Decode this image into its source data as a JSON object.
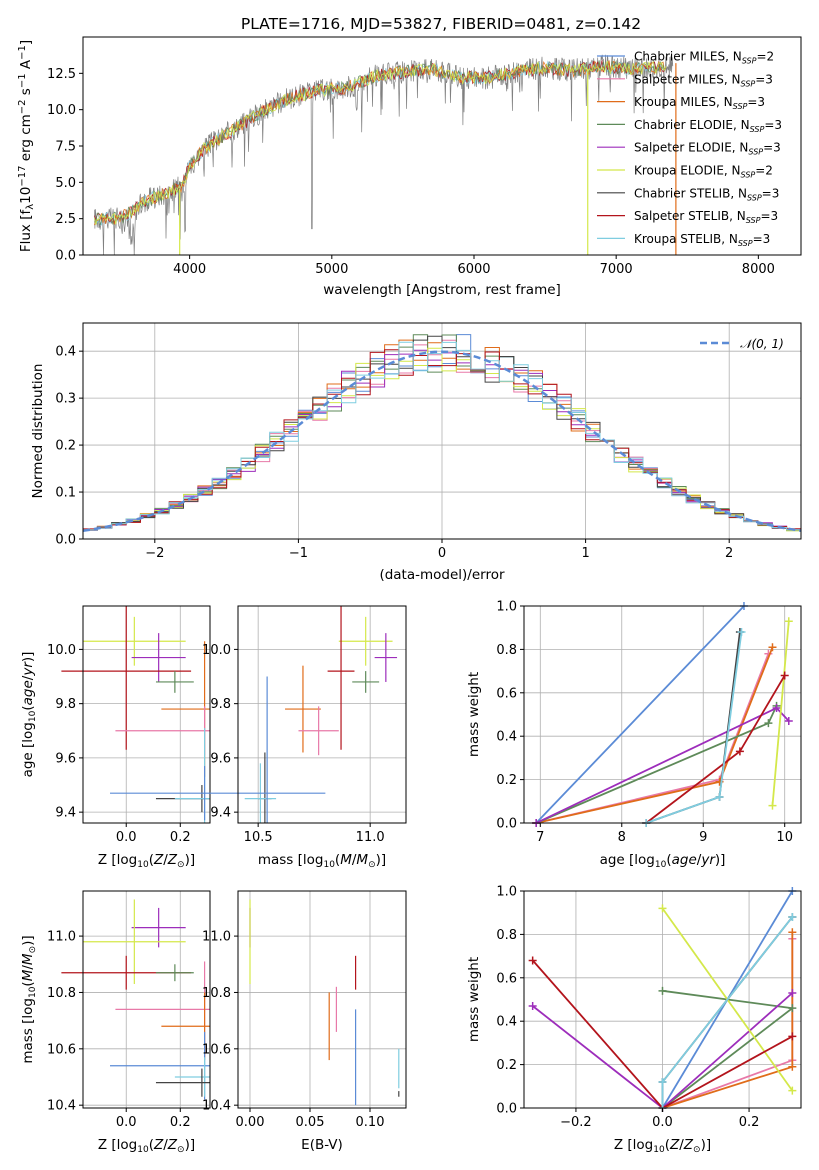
{
  "figure_title": "PLATE=1716, MJD=53827, FIBERID=0481, z=0.142",
  "colors": {
    "Chabrier MILES": "#5b8bd6",
    "Salpeter MILES": "#e879a8",
    "Kroupa MILES": "#e06c1a",
    "Chabrier ELODIE": "#5e8a59",
    "Salpeter ELODIE": "#9d2dbb",
    "Kroupa ELODIE": "#d4e84a",
    "Chabrier STELIB": "#444444",
    "Salpeter STELIB": "#b3141c",
    "Kroupa STELIB": "#7fcde0"
  },
  "chart_data": [
    {
      "id": "spectrum",
      "type": "line",
      "title": "PLATE=1716, MJD=53827, FIBERID=0481, z=0.142",
      "xlabel": "wavelength [Angstrom, rest frame]",
      "ylabel": "Flux [f_λ 10^-17 erg cm^-2 s^-1 A^-1]",
      "xlim": [
        3250,
        8300
      ],
      "ylim": [
        0,
        15
      ],
      "xticks": [
        "4000",
        "5000",
        "6000",
        "7000",
        "8000"
      ],
      "yticks": [
        "0.0",
        "2.5",
        "5.0",
        "7.5",
        "10.0",
        "12.5"
      ],
      "legend_position": "upper right",
      "legend": [
        "Chabrier MILES, N_SSP=2",
        "Salpeter MILES, N_SSP=3",
        "Kroupa MILES, N_SSP=3",
        "Chabrier ELODIE, N_SSP=3",
        "Salpeter ELODIE, N_SSP=3",
        "Kroupa ELODIE, N_SSP=2",
        "Chabrier STELIB, N_SSP=3",
        "Salpeter STELIB, N_SSP=3",
        "Kroupa STELIB, N_SSP=3"
      ],
      "continuum": {
        "x": [
          3300,
          3500,
          3600,
          3700,
          3850,
          3950,
          4000,
          4100,
          4300,
          4500,
          4700,
          4900,
          5100,
          5300,
          5500,
          5700,
          5900,
          6100,
          6300,
          6500,
          6700,
          6900,
          7100,
          7400
        ],
        "y": [
          2.5,
          2.5,
          3.0,
          3.8,
          4.3,
          4.8,
          6.2,
          7.3,
          8.6,
          9.8,
          10.8,
          11.3,
          11.5,
          12.3,
          12.6,
          12.8,
          12.2,
          12.2,
          12.6,
          12.9,
          12.7,
          13.0,
          12.8,
          13.0
        ]
      },
      "model_cutoff_left": 3930,
      "model_cutoff_right": 6800,
      "model_cutoff_right_2": 7420
    },
    {
      "id": "residuals",
      "type": "line",
      "xlabel": "(data-model)/error",
      "ylabel": "Normed distribution",
      "xlim": [
        -2.5,
        2.5
      ],
      "ylim": [
        0,
        0.46
      ],
      "xticks": [
        "−2",
        "−1",
        "0",
        "1",
        "2"
      ],
      "yticks": [
        "0.0",
        "0.1",
        "0.2",
        "0.3",
        "0.4"
      ],
      "grid": true,
      "legend_position": "upper right",
      "series": [
        {
          "name": "N(0,1)",
          "style": "dashed",
          "color": "#5b8bd6"
        }
      ],
      "histogram_bin_width": 0.1
    },
    {
      "id": "Z_vs_age",
      "type": "scatter",
      "xlabel": "Z [log10(Z/Z⊙)]",
      "ylabel": "age [log10(age/yr)]",
      "xlim": [
        -0.16,
        0.31
      ],
      "ylim": [
        9.36,
        10.16
      ],
      "xticks": [
        "0.0",
        "0.2"
      ],
      "yticks": [
        "9.4",
        "9.6",
        "9.8",
        "10.0"
      ],
      "grid": true,
      "errorbars": [
        {
          "model": "Kroupa ELODIE",
          "x": 0.03,
          "y": 10.03,
          "xerr": 0.19,
          "yerr": 0.09
        },
        {
          "model": "Salpeter ELODIE",
          "x": 0.12,
          "y": 9.97,
          "xerr": 0.1,
          "yerr": 0.09
        },
        {
          "model": "Salpeter STELIB",
          "x": 0.0,
          "y": 9.92,
          "xerr": 0.24,
          "yerr": 0.29
        },
        {
          "model": "Chabrier ELODIE",
          "x": 0.18,
          "y": 9.88,
          "xerr": 0.07,
          "yerr": 0.04
        },
        {
          "model": "Kroupa MILES",
          "x": 0.29,
          "y": 9.78,
          "xerr": 0.16,
          "yerr": 0.25
        },
        {
          "model": "Salpeter MILES",
          "x": 0.29,
          "y": 9.7,
          "xerr": 0.33,
          "yerr": 0.09
        },
        {
          "model": "Chabrier STELIB",
          "x": 0.28,
          "y": 9.45,
          "xerr": 0.17,
          "yerr": 0.05
        },
        {
          "model": "Kroupa STELIB",
          "x": 0.29,
          "y": 9.45,
          "xerr": 0.11,
          "yerr": 0.26
        },
        {
          "model": "Chabrier MILES",
          "x": 0.29,
          "y": 9.47,
          "xerr": 0.35,
          "yerr": 0.1
        }
      ]
    },
    {
      "id": "mass_vs_age",
      "type": "scatter",
      "xlabel": "mass [log10(M/M⊙)]",
      "ylabel": "",
      "xlim": [
        10.41,
        11.16
      ],
      "ylim": [
        9.36,
        10.16
      ],
      "xticks": [
        "10.5",
        "11.0"
      ],
      "yticks": [
        "9.4",
        "9.6",
        "9.8",
        "10.0"
      ],
      "grid": true,
      "errorbars": [
        {
          "model": "Kroupa ELODIE",
          "x": 10.98,
          "y": 10.03,
          "xerr": 0.12,
          "yerr": 0.09
        },
        {
          "model": "Salpeter ELODIE",
          "x": 11.07,
          "y": 9.97,
          "xerr": 0.05,
          "yerr": 0.09
        },
        {
          "model": "Salpeter STELIB",
          "x": 10.87,
          "y": 9.92,
          "xerr": 0.06,
          "yerr": 0.29
        },
        {
          "model": "Chabrier ELODIE",
          "x": 10.98,
          "y": 9.88,
          "xerr": 0.06,
          "yerr": 0.04
        },
        {
          "model": "Kroupa MILES",
          "x": 10.7,
          "y": 9.78,
          "xerr": 0.08,
          "yerr": 0.16
        },
        {
          "model": "Salpeter MILES",
          "x": 10.77,
          "y": 9.7,
          "xerr": 0.09,
          "yerr": 0.09
        },
        {
          "model": "Chabrier STELIB",
          "x": 10.53,
          "y": 9.45,
          "xerr": 0.03,
          "yerr": 0.17
        },
        {
          "model": "Kroupa STELIB",
          "x": 10.51,
          "y": 9.45,
          "xerr": 0.07,
          "yerr": 0.13
        },
        {
          "model": "Chabrier MILES",
          "x": 10.54,
          "y": 9.47,
          "xerr": 0.26,
          "yerr": 0.43
        }
      ]
    },
    {
      "id": "age_vs_weight",
      "type": "line",
      "xlabel": "age [log10(age/yr)]",
      "ylabel": "mass weight",
      "xlim": [
        6.8,
        10.2
      ],
      "ylim": [
        0,
        1
      ],
      "xticks": [
        "7",
        "8",
        "9",
        "10"
      ],
      "yticks": [
        "0.0",
        "0.2",
        "0.4",
        "0.6",
        "0.8",
        "1.0"
      ],
      "grid": true,
      "series": [
        {
          "name": "Chabrier MILES",
          "x": [
            6.95,
            9.5
          ],
          "y": [
            0.0,
            1.0
          ]
        },
        {
          "name": "Salpeter MILES",
          "x": [
            6.95,
            9.2,
            9.8
          ],
          "y": [
            0.0,
            0.2,
            0.78
          ]
        },
        {
          "name": "Kroupa MILES",
          "x": [
            6.95,
            9.2,
            9.85
          ],
          "y": [
            0.0,
            0.19,
            0.81
          ]
        },
        {
          "name": "Chabrier ELODIE",
          "x": [
            6.95,
            9.8,
            9.9
          ],
          "y": [
            0.0,
            0.46,
            0.54
          ]
        },
        {
          "name": "Salpeter ELODIE",
          "x": [
            6.95,
            9.9,
            10.05
          ],
          "y": [
            0.0,
            0.53,
            0.47
          ]
        },
        {
          "name": "Kroupa ELODIE",
          "x": [
            9.85,
            10.05
          ],
          "y": [
            0.08,
            0.93
          ]
        },
        {
          "name": "Chabrier STELIB",
          "x": [
            8.3,
            9.2,
            9.45
          ],
          "y": [
            0.0,
            0.12,
            0.88
          ]
        },
        {
          "name": "Salpeter STELIB",
          "x": [
            8.3,
            9.45,
            10.0
          ],
          "y": [
            0.0,
            0.33,
            0.68
          ]
        },
        {
          "name": "Kroupa STELIB",
          "x": [
            8.3,
            9.2,
            9.47
          ],
          "y": [
            0.0,
            0.12,
            0.88
          ]
        }
      ]
    },
    {
      "id": "Z_vs_mass",
      "type": "scatter",
      "xlabel": "Z [log10(Z/Z⊙)]",
      "ylabel": "mass [log10(M/M⊙)]",
      "xlim": [
        -0.16,
        0.31
      ],
      "ylim": [
        10.39,
        11.16
      ],
      "xticks": [
        "0.0",
        "0.2"
      ],
      "yticks": [
        "10.4",
        "10.6",
        "10.8",
        "11.0"
      ],
      "grid": true,
      "errorbars": [
        {
          "model": "Salpeter ELODIE",
          "x": 0.12,
          "y": 11.03,
          "xerr": 0.1,
          "yerr": 0.07
        },
        {
          "model": "Kroupa ELODIE",
          "x": 0.03,
          "y": 10.98,
          "xerr": 0.19,
          "yerr": 0.15
        },
        {
          "model": "Salpeter STELIB",
          "x": 0.0,
          "y": 10.87,
          "xerr": 0.24,
          "yerr": 0.06
        },
        {
          "model": "Chabrier ELODIE",
          "x": 0.18,
          "y": 10.87,
          "xerr": 0.07,
          "yerr": 0.03
        },
        {
          "model": "Salpeter MILES",
          "x": 0.29,
          "y": 10.74,
          "xerr": 0.33,
          "yerr": 0.17
        },
        {
          "model": "Kroupa MILES",
          "x": 0.29,
          "y": 10.68,
          "xerr": 0.16,
          "yerr": 0.12
        },
        {
          "model": "Chabrier MILES",
          "x": 0.29,
          "y": 10.54,
          "xerr": 0.35,
          "yerr": 0.12
        },
        {
          "model": "Kroupa STELIB",
          "x": 0.29,
          "y": 10.5,
          "xerr": 0.11,
          "yerr": 0.07
        },
        {
          "model": "Chabrier STELIB",
          "x": 0.28,
          "y": 10.48,
          "xerr": 0.17,
          "yerr": 0.05
        }
      ]
    },
    {
      "id": "EBV_vs_mass",
      "type": "scatter",
      "xlabel": "E(B-V)",
      "ylabel": "",
      "xlim": [
        -0.01,
        0.13
      ],
      "ylim": [
        10.39,
        11.16
      ],
      "xticks": [
        "0.00",
        "0.05",
        "0.10"
      ],
      "yticks": [
        "10.4",
        "10.6",
        "10.8",
        "11.0"
      ],
      "grid": true,
      "errorbars": [
        {
          "model": "Salpeter ELODIE",
          "x": 0.0,
          "y": 11.03,
          "xerr": 0,
          "yerr": 0.07
        },
        {
          "model": "Kroupa ELODIE",
          "x": 0.0,
          "y": 10.98,
          "xerr": 0,
          "yerr": 0.15
        },
        {
          "model": "Kroupa MILES",
          "x": 0.066,
          "y": 10.68,
          "xerr": 0,
          "yerr": 0.12
        },
        {
          "model": "Salpeter MILES",
          "x": 0.072,
          "y": 10.74,
          "xerr": 0,
          "yerr": 0.08
        },
        {
          "model": "Salpeter STELIB",
          "x": 0.088,
          "y": 10.87,
          "xerr": 0,
          "yerr": 0.06
        },
        {
          "model": "Chabrier MILES",
          "x": 0.088,
          "y": 10.57,
          "xerr": 0,
          "yerr": 0.17
        },
        {
          "model": "Kroupa STELIB",
          "x": 0.124,
          "y": 10.53,
          "xerr": 0,
          "yerr": 0.07
        },
        {
          "model": "Chabrier STELIB",
          "x": 0.124,
          "y": 10.44,
          "xerr": 0,
          "yerr": 0.01
        }
      ]
    },
    {
      "id": "Z_vs_weight",
      "type": "line",
      "xlabel": "Z [log10(Z/Z⊙)]",
      "ylabel": "mass weight",
      "xlim": [
        -0.32,
        0.32
      ],
      "ylim": [
        0,
        1
      ],
      "xticks": [
        "−0.2",
        "0.0",
        "0.2"
      ],
      "yticks": [
        "0.0",
        "0.2",
        "0.4",
        "0.6",
        "0.8",
        "1.0"
      ],
      "grid": true,
      "series": [
        {
          "name": "Chabrier MILES",
          "x": [
            0.0,
            0.3
          ],
          "y": [
            0.0,
            1.0
          ]
        },
        {
          "name": "Salpeter MILES",
          "x": [
            0.0,
            0.3,
            0.3
          ],
          "y": [
            0.0,
            0.22,
            0.78
          ]
        },
        {
          "name": "Kroupa MILES",
          "x": [
            0.0,
            0.3,
            0.3
          ],
          "y": [
            0.0,
            0.19,
            0.81
          ]
        },
        {
          "name": "Chabrier ELODIE",
          "x": [
            0.0,
            0.3,
            0.0
          ],
          "y": [
            0.0,
            0.46,
            0.54
          ]
        },
        {
          "name": "Salpeter ELODIE",
          "x": [
            -0.3,
            0.0,
            0.3
          ],
          "y": [
            0.47,
            0.0,
            0.53
          ]
        },
        {
          "name": "Kroupa ELODIE",
          "x": [
            0.0,
            0.3
          ],
          "y": [
            0.92,
            0.08
          ]
        },
        {
          "name": "Chabrier STELIB",
          "x": [
            0.0,
            0.0,
            0.3
          ],
          "y": [
            0.0,
            0.12,
            0.88
          ]
        },
        {
          "name": "Salpeter STELIB",
          "x": [
            -0.3,
            0.0,
            0.3
          ],
          "y": [
            0.68,
            0.0,
            0.33
          ]
        },
        {
          "name": "Kroupa STELIB",
          "x": [
            0.0,
            0.0,
            0.3
          ],
          "y": [
            0.0,
            0.12,
            0.88
          ]
        }
      ]
    }
  ]
}
